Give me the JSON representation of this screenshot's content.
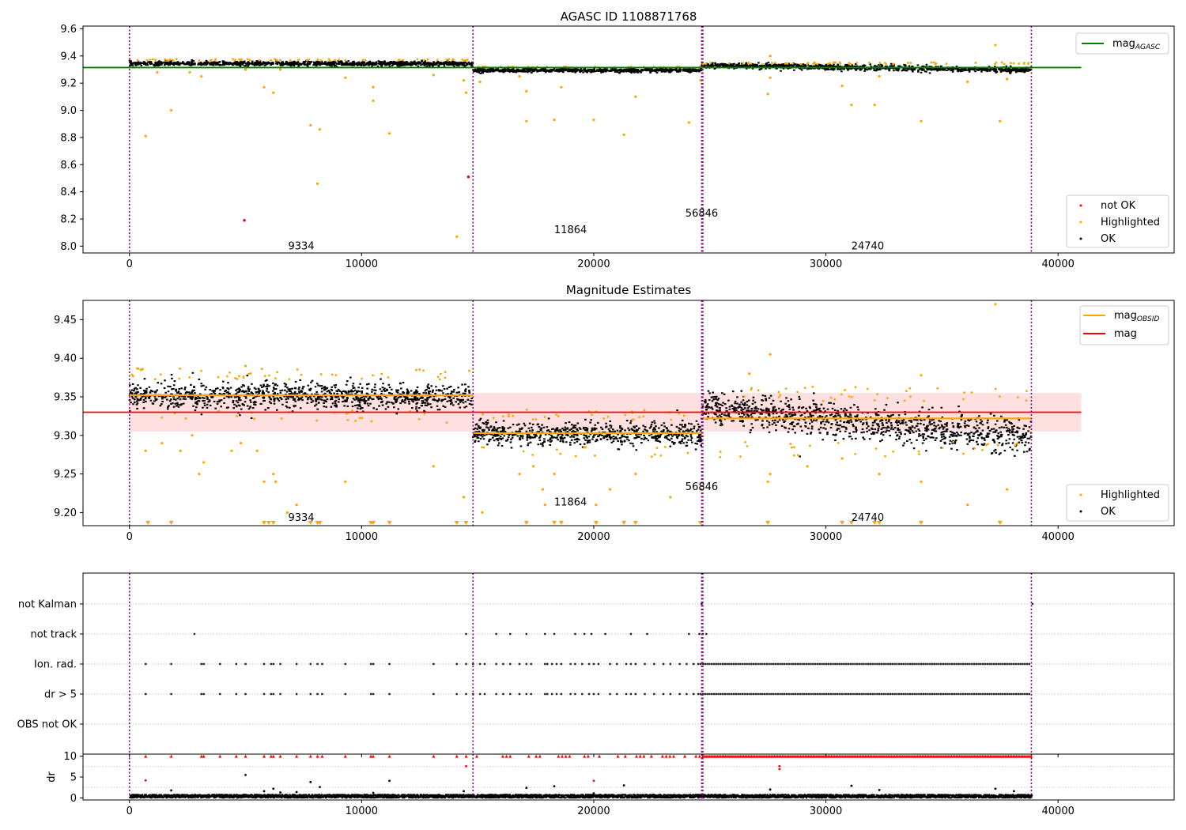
{
  "chart_data": [
    {
      "type": "scatter",
      "title": "AGASC ID 1108871768",
      "xlabel": "",
      "ylabel": "",
      "xlim": [
        -2000,
        45000
      ],
      "ylim": [
        7.95,
        9.62
      ],
      "xticks": [
        0,
        10000,
        20000,
        30000,
        40000
      ],
      "xtick_labels": [
        "0",
        "10000",
        "20000",
        "30000",
        "40000"
      ],
      "yticks": [
        8.0,
        8.2,
        8.4,
        8.6,
        8.8,
        9.0,
        9.2,
        9.4,
        9.6
      ],
      "ytick_labels": [
        "8.0",
        "8.2",
        "8.4",
        "8.6",
        "8.8",
        "9.0",
        "9.2",
        "9.4",
        "9.6"
      ],
      "observation_boundaries": [
        0,
        14800,
        24650,
        24700,
        38850
      ],
      "observations": [
        {
          "obsid": "9334",
          "x_start": 0,
          "x_end": 14800,
          "band_center": 9.35,
          "band_halfwidth": 0.018
        },
        {
          "obsid": "11864",
          "x_start": 14800,
          "x_end": 24650,
          "band_center": 9.3,
          "band_halfwidth": 0.015
        },
        {
          "obsid": "56846",
          "x_start": 24650,
          "x_end": 24700,
          "band_center": 9.33,
          "band_halfwidth": 0.02
        },
        {
          "obsid": "24740",
          "x_start": 24700,
          "x_end": 38850,
          "band_center": 9.32,
          "band_halfwidth": 0.022
        }
      ],
      "obsid_labels": [
        {
          "text": "9334",
          "x": 7400,
          "y": 8.0
        },
        {
          "text": "11864",
          "x": 19000,
          "y": 8.12
        },
        {
          "text": "56846",
          "x": 24650,
          "y": 8.24
        },
        {
          "text": "24740",
          "x": 31800,
          "y": 8.0
        }
      ],
      "reference_lines": [
        {
          "name": "mag_AGASC",
          "y": 9.315,
          "x_start": -2000,
          "x_end": 41000,
          "color": "#008000"
        }
      ],
      "highlighted_points": [
        [
          700,
          8.81
        ],
        [
          1800,
          9.0
        ],
        [
          3100,
          9.25
        ],
        [
          5000,
          9.3
        ],
        [
          5800,
          9.17
        ],
        [
          6200,
          9.13
        ],
        [
          6500,
          9.3
        ],
        [
          7800,
          8.89
        ],
        [
          8100,
          8.46
        ],
        [
          8200,
          8.86
        ],
        [
          9300,
          9.24
        ],
        [
          10500,
          9.07
        ],
        [
          10500,
          9.17
        ],
        [
          11200,
          8.83
        ],
        [
          13100,
          9.26
        ],
        [
          14100,
          8.07
        ],
        [
          14400,
          9.22
        ],
        [
          14500,
          9.13
        ],
        [
          15100,
          9.21
        ],
        [
          16800,
          9.25
        ],
        [
          17100,
          8.92
        ],
        [
          17100,
          9.14
        ],
        [
          18300,
          8.93
        ],
        [
          18600,
          9.17
        ],
        [
          20000,
          8.93
        ],
        [
          21300,
          8.82
        ],
        [
          21800,
          9.1
        ],
        [
          24100,
          8.91
        ],
        [
          24600,
          9.22
        ],
        [
          27500,
          9.12
        ],
        [
          27600,
          9.24
        ],
        [
          30700,
          9.18
        ],
        [
          31100,
          9.04
        ],
        [
          32100,
          9.04
        ],
        [
          32300,
          9.25
        ],
        [
          34100,
          8.92
        ],
        [
          36100,
          9.21
        ],
        [
          37300,
          9.48
        ],
        [
          37500,
          8.92
        ],
        [
          37800,
          9.23
        ],
        [
          27600,
          9.4
        ],
        [
          1200,
          9.28
        ],
        [
          2600,
          9.28
        ]
      ],
      "not_ok_points": [
        [
          4950,
          8.19
        ],
        [
          14600,
          8.51
        ]
      ],
      "legends": [
        {
          "location": "upper right",
          "entries": [
            {
              "label": "mag",
              "subscript": "AGASC",
              "color": "#008000",
              "marker": "line"
            }
          ]
        },
        {
          "location": "lower right",
          "entries": [
            {
              "label": "not OK",
              "color": "#ff0000",
              "marker": "point"
            },
            {
              "label": "Highlighted",
              "color": "#ffa500",
              "marker": "point"
            },
            {
              "label": "OK",
              "color": "#000000",
              "marker": "point"
            }
          ]
        }
      ]
    },
    {
      "type": "scatter",
      "title": "Magnitude Estimates",
      "xlabel": "",
      "ylabel": "",
      "xlim": [
        -2000,
        45000
      ],
      "ylim": [
        9.183,
        9.475
      ],
      "xticks": [
        0,
        10000,
        20000,
        30000,
        40000
      ],
      "xtick_labels": [
        "0",
        "10000",
        "20000",
        "30000",
        "40000"
      ],
      "yticks": [
        9.2,
        9.25,
        9.3,
        9.35,
        9.4,
        9.45
      ],
      "ytick_labels": [
        "9.20",
        "9.25",
        "9.30",
        "9.35",
        "9.40",
        "9.45"
      ],
      "observation_boundaries": [
        0,
        14800,
        24650,
        24700,
        38850
      ],
      "observations": [
        {
          "obsid": "9334",
          "x_start": 0,
          "x_end": 14800,
          "band_center": 9.352,
          "band_halfwidth": 0.02,
          "mag_obsid": 9.352
        },
        {
          "obsid": "11864",
          "x_start": 14800,
          "x_end": 24650,
          "band_center": 9.303,
          "band_halfwidth": 0.017,
          "mag_obsid": 9.303
        },
        {
          "obsid": "56846",
          "x_start": 24650,
          "x_end": 24700,
          "band_center": 9.33,
          "band_halfwidth": 0.022,
          "mag_obsid": 9.33
        },
        {
          "obsid": "24740",
          "x_start": 24700,
          "x_end": 38850,
          "band_center": 9.318,
          "band_halfwidth": 0.026,
          "mag_obsid": 9.322
        }
      ],
      "obsid_labels": [
        {
          "text": "9334",
          "x": 7400,
          "y": 9.193
        },
        {
          "text": "11864",
          "x": 19000,
          "y": 9.213
        },
        {
          "text": "56846",
          "x": 24650,
          "y": 9.233
        },
        {
          "text": "24740",
          "x": 31800,
          "y": 9.193
        }
      ],
      "reference_lines": [
        {
          "name": "mag",
          "y": 9.33,
          "x_start": -2000,
          "x_end": 41000,
          "color": "#ff0000",
          "band": [
            9.305,
            9.355
          ]
        }
      ],
      "highlighted_points": [
        [
          700,
          9.28
        ],
        [
          1400,
          9.29
        ],
        [
          2200,
          9.28
        ],
        [
          2700,
          9.3
        ],
        [
          3000,
          9.25
        ],
        [
          3200,
          9.265
        ],
        [
          4400,
          9.28
        ],
        [
          4800,
          9.29
        ],
        [
          5500,
          9.28
        ],
        [
          5800,
          9.24
        ],
        [
          6200,
          9.25
        ],
        [
          6300,
          9.24
        ],
        [
          6800,
          9.2
        ],
        [
          7200,
          9.21
        ],
        [
          9300,
          9.24
        ],
        [
          13100,
          9.26
        ],
        [
          14400,
          9.22
        ],
        [
          15200,
          9.2
        ],
        [
          16800,
          9.25
        ],
        [
          17400,
          9.26
        ],
        [
          17800,
          9.23
        ],
        [
          17900,
          9.21
        ],
        [
          18300,
          9.25
        ],
        [
          20100,
          9.21
        ],
        [
          20700,
          9.23
        ],
        [
          21800,
          9.25
        ],
        [
          23300,
          9.22
        ],
        [
          24600,
          9.23
        ],
        [
          27500,
          9.24
        ],
        [
          27600,
          9.25
        ],
        [
          29200,
          9.26
        ],
        [
          30700,
          9.27
        ],
        [
          32300,
          9.25
        ],
        [
          34100,
          9.24
        ],
        [
          36100,
          9.21
        ],
        [
          37300,
          9.47
        ],
        [
          37800,
          9.23
        ],
        [
          27600,
          9.405
        ],
        [
          34100,
          9.378
        ],
        [
          500,
          9.385
        ],
        [
          5000,
          9.39
        ],
        [
          26700,
          9.38
        ]
      ],
      "clipped_low_x": [
        800,
        1800,
        5800,
        6000,
        6200,
        7800,
        8100,
        8200,
        10400,
        10500,
        11200,
        14100,
        14500,
        17100,
        18300,
        18600,
        20100,
        21300,
        21800,
        24600,
        27500,
        30700,
        31100,
        32100,
        32300,
        34100,
        37500
      ],
      "legends": [
        {
          "location": "upper right",
          "entries": [
            {
              "label": "mag",
              "subscript": "OBSID",
              "color": "#ffa500",
              "marker": "line"
            },
            {
              "label": "mag",
              "color": "#ff0000",
              "marker": "line"
            }
          ]
        },
        {
          "location": "lower right",
          "entries": [
            {
              "label": "Highlighted",
              "color": "#ffa500",
              "marker": "point"
            },
            {
              "label": "OK",
              "color": "#000000",
              "marker": "point"
            }
          ]
        }
      ]
    },
    {
      "type": "scatter",
      "title": "",
      "xlabel": "",
      "ylabel": "",
      "xlim": [
        -2000,
        45000
      ],
      "xticks": [
        0,
        10000,
        20000,
        30000,
        40000
      ],
      "xtick_labels": [
        "0",
        "10000",
        "20000",
        "30000",
        "40000"
      ],
      "flag_rows": [
        "not Kalman",
        "not track",
        "Ion. rad.",
        "dr > 5",
        "OBS not OK"
      ],
      "flag_events": {
        "not Kalman": [
          24650,
          38900
        ],
        "not track": [
          2800,
          14500,
          15800,
          16400,
          17100,
          17900,
          18300,
          19200,
          19600,
          19900,
          20500,
          21600,
          22300,
          24100,
          24550,
          24700,
          24850
        ],
        "Ion. rad.": [
          700,
          1800,
          3100,
          3200,
          3900,
          4600,
          5000,
          5800,
          6100,
          6200,
          6500,
          7200,
          7800,
          8100,
          8300,
          9300,
          10400,
          10500,
          11200,
          13100,
          14100,
          14500,
          14800,
          15100,
          15300,
          15800,
          16100,
          16400,
          16800,
          17100,
          17300,
          17900,
          18000,
          18200,
          18400,
          18600,
          19000,
          19200,
          19500,
          19800,
          20000,
          20200,
          20700,
          21000,
          21400,
          21600,
          21800,
          22200,
          22600,
          23000,
          23300,
          23700,
          24000,
          24300,
          24500,
          24600
        ],
        "dr > 5": [
          700,
          1800,
          3100,
          3200,
          3900,
          4600,
          5000,
          5800,
          6100,
          6200,
          6500,
          7200,
          7800,
          8100,
          8300,
          9300,
          10400,
          10500,
          11200,
          13100,
          14100,
          14500,
          14800,
          15100,
          15300,
          15800,
          16100,
          16400,
          16800,
          17100,
          17300,
          17900,
          18000,
          18200,
          18400,
          18600,
          19000,
          19200,
          19500,
          19800,
          20000,
          20200,
          20700,
          21000,
          21400,
          21600,
          21800,
          22200,
          22600,
          23000,
          23300,
          23700,
          24000,
          24300,
          24500,
          24600
        ]
      },
      "flag_dense_ranges": {
        "Ion. rad.": [
          24700,
          38850
        ],
        "dr > 5": [
          24700,
          38850
        ]
      },
      "observation_boundaries": [
        0,
        14800,
        24650,
        24700,
        38850
      ]
    },
    {
      "type": "scatter",
      "title": "",
      "xlabel": "",
      "ylabel": "dr",
      "xlim": [
        -2000,
        45000
      ],
      "ylim": [
        -0.5,
        10.5
      ],
      "yticks": [
        0,
        5,
        10
      ],
      "ytick_labels": [
        "0",
        "5",
        "10"
      ],
      "xticks": [
        0,
        10000,
        20000,
        30000,
        40000
      ],
      "xtick_labels": [
        "0",
        "10000",
        "20000",
        "30000",
        "40000"
      ],
      "observation_boundaries": [
        0,
        14800,
        24650,
        24700,
        38850
      ],
      "baseline_dr": [
        0.0,
        0.8
      ],
      "outliers_black": [
        [
          1800,
          1.8
        ],
        [
          5000,
          5.5
        ],
        [
          5800,
          1.6
        ],
        [
          6200,
          2.2
        ],
        [
          6500,
          1.3
        ],
        [
          7200,
          1.4
        ],
        [
          7800,
          3.8
        ],
        [
          8200,
          2.6
        ],
        [
          10500,
          1.2
        ],
        [
          11200,
          4.1
        ],
        [
          14400,
          1.6
        ],
        [
          17100,
          2.4
        ],
        [
          18300,
          2.8
        ],
        [
          20000,
          1.1
        ],
        [
          21300,
          3.0
        ],
        [
          27600,
          2.0
        ],
        [
          31100,
          2.9
        ],
        [
          32300,
          1.9
        ],
        [
          37300,
          2.2
        ],
        [
          38100,
          1.6
        ]
      ],
      "outliers_red": [
        [
          700,
          4.2
        ],
        [
          14500,
          7.6
        ],
        [
          20000,
          4.1
        ],
        [
          28000,
          6.9
        ],
        [
          28000,
          7.6
        ]
      ],
      "red_cap_x": [
        700,
        1800,
        3100,
        3200,
        3900,
        4600,
        5000,
        5800,
        6100,
        6200,
        6500,
        7200,
        7800,
        8100,
        8300,
        9300,
        10400,
        10500,
        11200,
        13100,
        14100,
        14500
      ],
      "red_cap_dense_ranges": [
        [
          14800,
          24650
        ],
        [
          24700,
          38850
        ]
      ],
      "red_cap_y": 10
    }
  ]
}
